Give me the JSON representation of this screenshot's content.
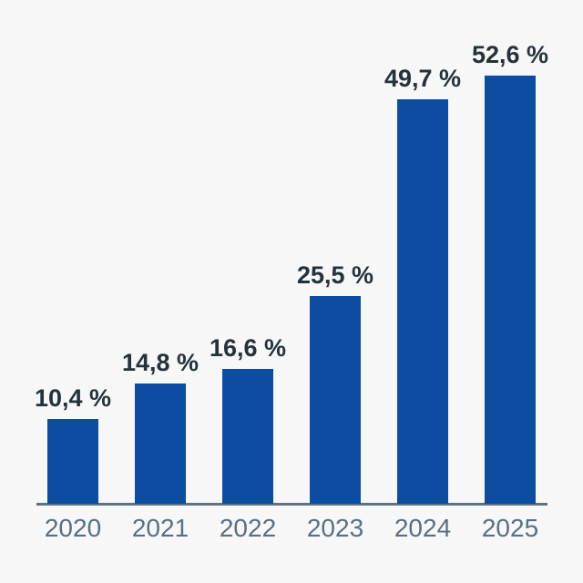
{
  "chart_data": {
    "type": "bar",
    "categories": [
      "2020",
      "2021",
      "2022",
      "2023",
      "2024",
      "2025"
    ],
    "values": [
      10.4,
      14.8,
      16.6,
      25.5,
      49.7,
      52.6
    ],
    "value_labels": [
      "10,4 %",
      "14,8 %",
      "16,6 %",
      "25,5 %",
      "49,7 %",
      "52,6 %"
    ],
    "title": "",
    "xlabel": "",
    "ylabel": "",
    "ylim": [
      0,
      55
    ],
    "grid": false,
    "legend": "none",
    "bar_color": "#0c4da2",
    "value_label_color": "#24333a",
    "tick_label_color": "#577083",
    "axis_line_color": "#5b7384",
    "background_color": "#f7f7f7"
  }
}
